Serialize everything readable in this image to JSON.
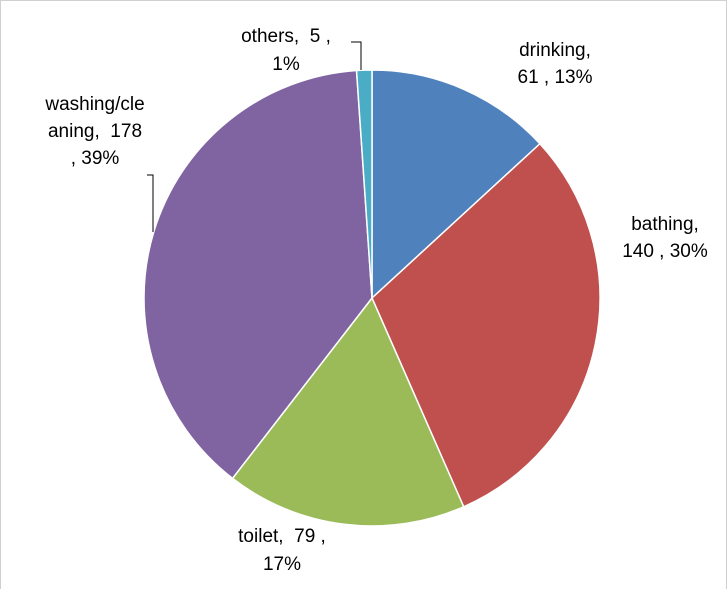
{
  "chart_data": {
    "type": "pie",
    "slices": [
      {
        "category": "drinking",
        "value": 61,
        "percent": "13%",
        "color": "#4F81BD",
        "label_lines": [
          "drinking,",
          "61 , 13%"
        ]
      },
      {
        "category": "bathing",
        "value": 140,
        "percent": "30%",
        "color": "#C0504D",
        "label_lines": [
          "bathing,",
          "140 , 30%"
        ]
      },
      {
        "category": "toilet",
        "value": 79,
        "percent": "17%",
        "color": "#9BBB59",
        "label_lines": [
          "toilet,  79 ,",
          "17%"
        ]
      },
      {
        "category": "washing/cleaning",
        "value": 178,
        "percent": "39%",
        "color": "#8064A2",
        "label_lines": [
          "washing/cle",
          "aning,  178",
          ", 39%"
        ]
      },
      {
        "category": "others",
        "value": 5,
        "percent": "1%",
        "color": "#4BACC6",
        "label_lines": [
          "others,  5 ,",
          "1%"
        ]
      }
    ],
    "title": "",
    "legend": "none"
  }
}
